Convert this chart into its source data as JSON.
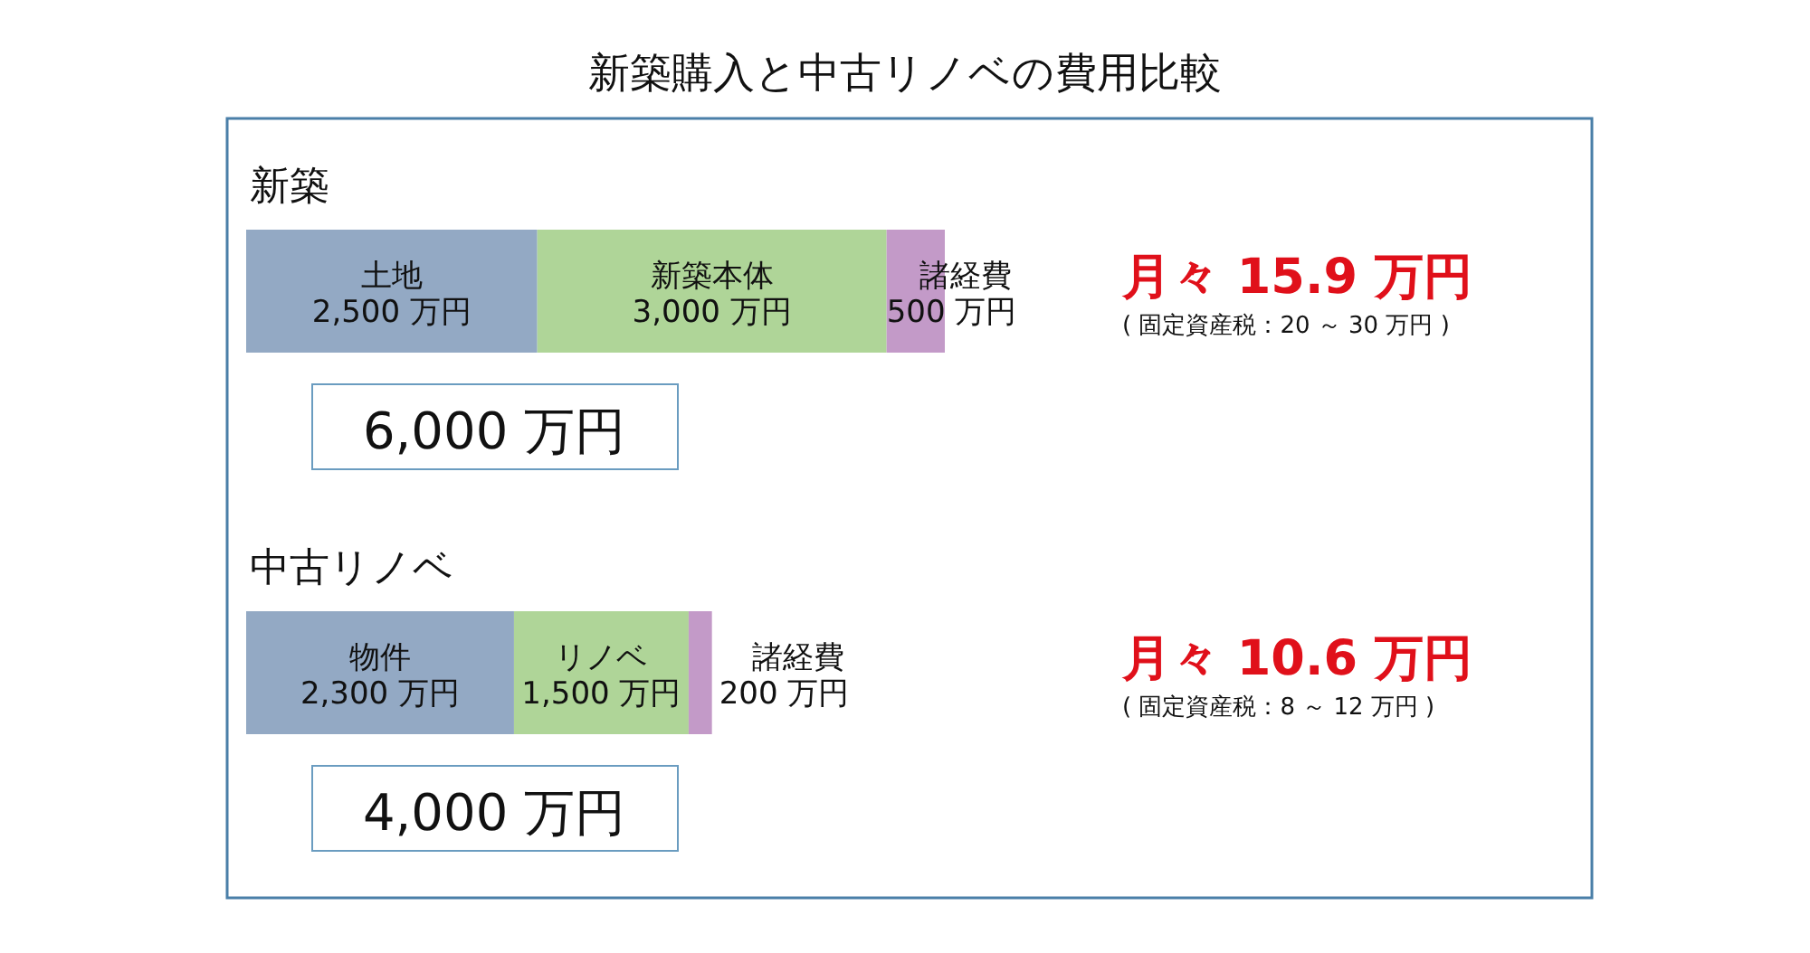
{
  "chart_data": [
    {
      "type": "bar",
      "orientation": "horizontal",
      "stacked": true,
      "title": "新築購入と中古リノベの費用比較",
      "subtitle": "新築",
      "categories": [
        null
      ],
      "series": [
        {
          "name": "土地",
          "color": "#93a9c4",
          "values": [
            2500
          ],
          "value_labels": [
            "2,500 万円"
          ]
        },
        {
          "name": "新築本体",
          "color": "#afd598",
          "values": [
            3000
          ],
          "value_labels": [
            "3,000 万円"
          ]
        },
        {
          "name": "諸経費",
          "color": "#c39ac8",
          "values": [
            500
          ],
          "value_labels": [
            "500 万円"
          ]
        }
      ],
      "totals": [
        "6,000 万円"
      ],
      "annotations": [
        "月々 15.9 万円",
        "( 固定資産税：20 ～ 30 万円 )"
      ]
    },
    {
      "type": "bar",
      "orientation": "horizontal",
      "stacked": true,
      "subtitle": "中古リノベ",
      "categories": [
        null
      ],
      "series": [
        {
          "name": "物件",
          "color": "#93a9c4",
          "values": [
            2300
          ],
          "value_labels": [
            "2,300 万円"
          ]
        },
        {
          "name": "リノベ",
          "color": "#afd598",
          "values": [
            1500
          ],
          "value_labels": [
            "1,500 万円"
          ]
        },
        {
          "name": "諸経費",
          "color": "#c39ac8",
          "values": [
            200
          ],
          "value_labels": [
            "200 万円"
          ]
        }
      ],
      "totals": [
        "4,000 万円"
      ],
      "annotations": [
        "月々 10.6 万円",
        "( 固定資産税：8 ～ 12 万円 )"
      ]
    }
  ]
}
